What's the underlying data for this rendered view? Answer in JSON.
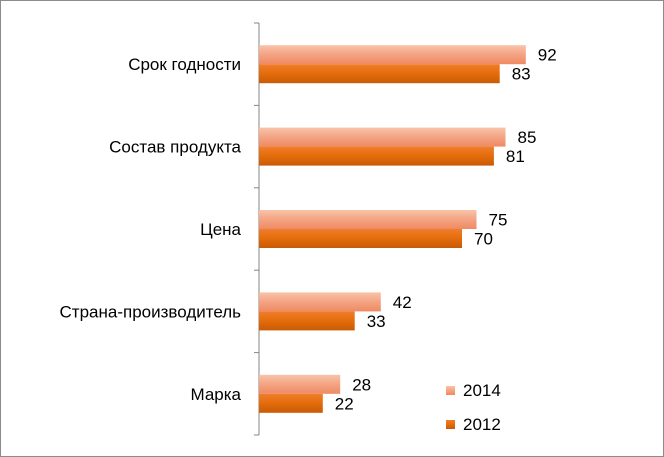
{
  "chart_data": {
    "type": "bar",
    "orientation": "horizontal",
    "categories": [
      "Срок годности",
      "Состав продукта",
      "Цена",
      "Страна-производитель",
      "Марка"
    ],
    "series": [
      {
        "name": "2014",
        "values": [
          92,
          85,
          75,
          42,
          28
        ],
        "color": "#f4a383"
      },
      {
        "name": "2012",
        "values": [
          83,
          81,
          70,
          33,
          22
        ],
        "color": "#e46c0a"
      }
    ],
    "xlim": [
      0,
      100
    ],
    "grid": false,
    "legend": "bottom-right",
    "title": "",
    "xlabel": "",
    "ylabel": ""
  }
}
